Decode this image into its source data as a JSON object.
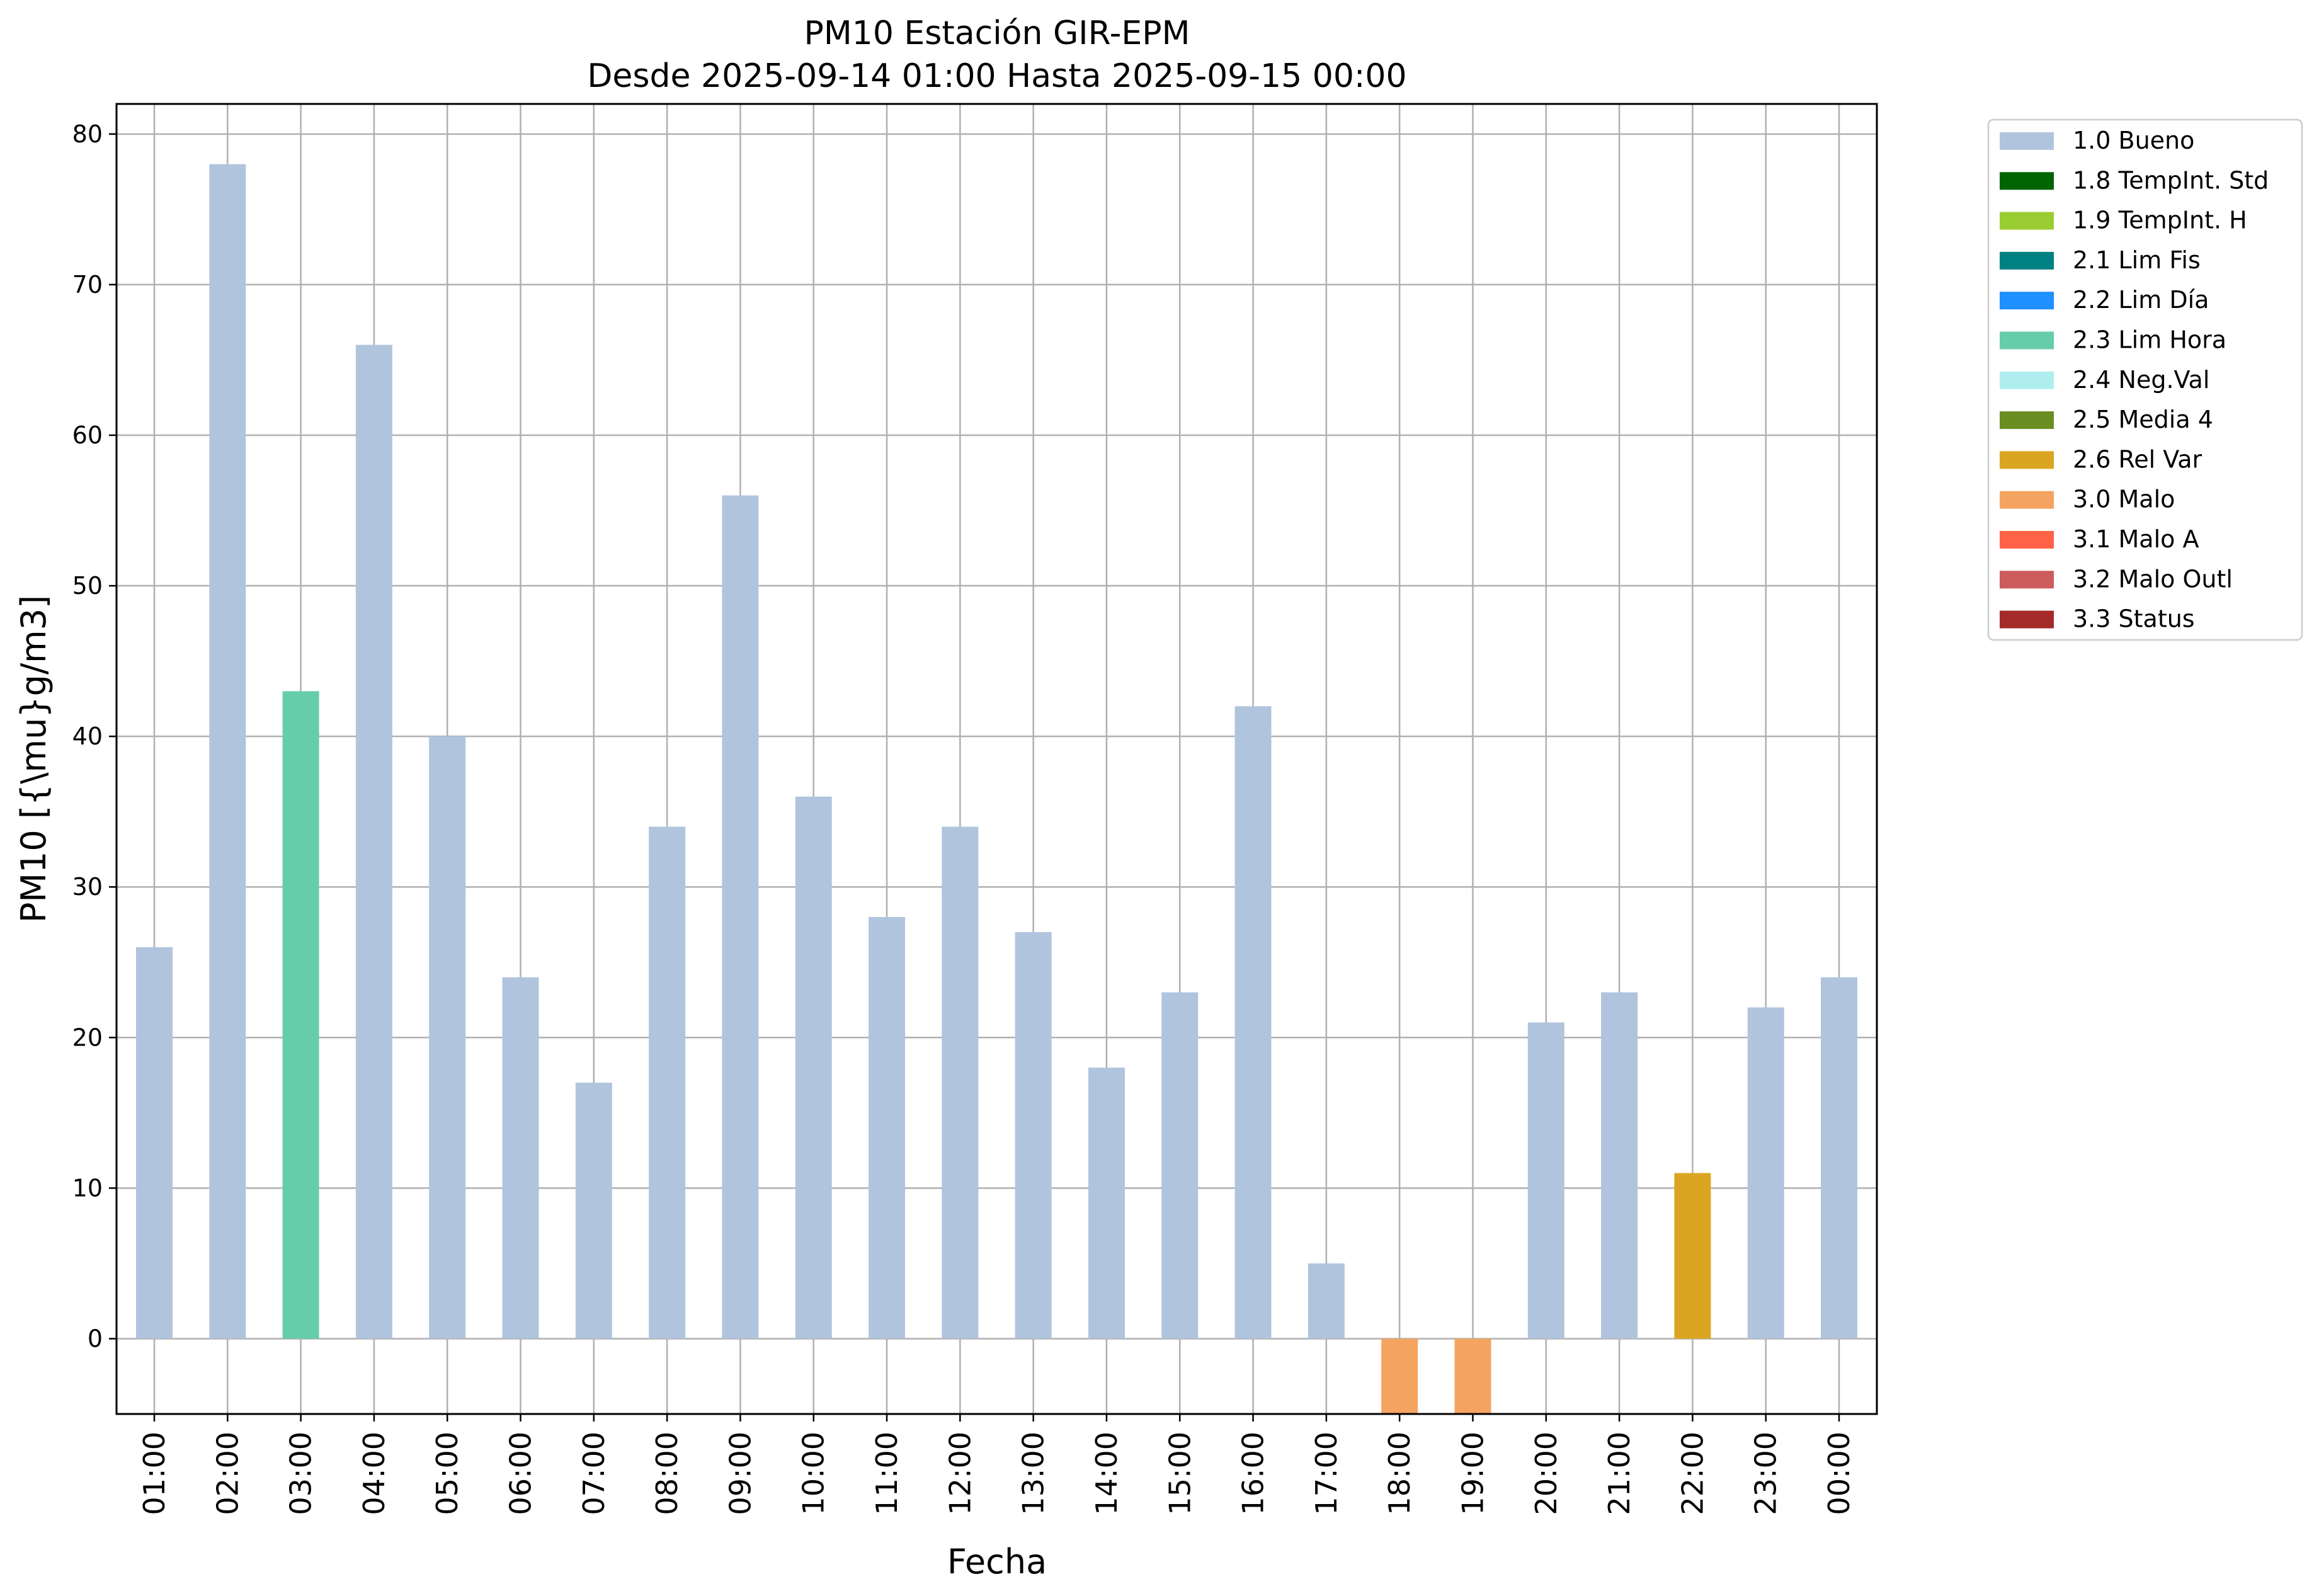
{
  "chart_data": {
    "type": "bar",
    "title": "PM10 Estación GIR-EPM",
    "subtitle": "Desde 2025-09-14 01:00 Hasta 2025-09-15 00:00",
    "xlabel": "Fecha",
    "ylabel": "PM10 [{\\mu}g/m3]",
    "ylim": [
      -5,
      82
    ],
    "yticks": [
      0,
      10,
      20,
      30,
      40,
      50,
      60,
      70,
      80
    ],
    "grid": true,
    "legend_position": "outside-top-right",
    "categories": [
      "01:00",
      "02:00",
      "03:00",
      "04:00",
      "05:00",
      "06:00",
      "07:00",
      "08:00",
      "09:00",
      "10:00",
      "11:00",
      "12:00",
      "13:00",
      "14:00",
      "15:00",
      "16:00",
      "17:00",
      "18:00",
      "19:00",
      "20:00",
      "21:00",
      "22:00",
      "23:00",
      "00:00"
    ],
    "values": [
      26,
      78,
      43,
      66,
      40,
      24,
      17,
      34,
      56,
      36,
      28,
      34,
      27,
      18,
      23,
      42,
      5,
      -5,
      -5,
      21,
      23,
      11,
      22,
      24
    ],
    "flags": [
      "1.0 Bueno",
      "1.0 Bueno",
      "2.3 Lim Hora",
      "1.0 Bueno",
      "1.0 Bueno",
      "1.0 Bueno",
      "1.0 Bueno",
      "1.0 Bueno",
      "1.0 Bueno",
      "1.0 Bueno",
      "1.0 Bueno",
      "1.0 Bueno",
      "1.0 Bueno",
      "1.0 Bueno",
      "1.0 Bueno",
      "1.0 Bueno",
      "1.0 Bueno",
      "3.0 Malo",
      "3.0 Malo",
      "1.0 Bueno",
      "1.0 Bueno",
      "2.6 Rel Var",
      "1.0 Bueno",
      "1.0 Bueno"
    ],
    "legend": [
      {
        "label": "1.0 Bueno",
        "color": "#b0c4de"
      },
      {
        "label": "1.8 TempInt. Std",
        "color": "#006400"
      },
      {
        "label": "1.9 TempInt. H",
        "color": "#9acd32"
      },
      {
        "label": "2.1 Lim Fis",
        "color": "#008080"
      },
      {
        "label": "2.2 Lim Día",
        "color": "#1e90ff"
      },
      {
        "label": "2.3 Lim Hora",
        "color": "#66cdaa"
      },
      {
        "label": "2.4 Neg.Val",
        "color": "#afeeee"
      },
      {
        "label": "2.5 Media 4",
        "color": "#6b8e23"
      },
      {
        "label": "2.6 Rel Var",
        "color": "#daa520"
      },
      {
        "label": "3.0 Malo",
        "color": "#f4a460"
      },
      {
        "label": "3.1 Malo A",
        "color": "#ff6347"
      },
      {
        "label": "3.2 Malo Outl",
        "color": "#cd5c5c"
      },
      {
        "label": "3.3 Status",
        "color": "#a52a2a"
      }
    ]
  }
}
